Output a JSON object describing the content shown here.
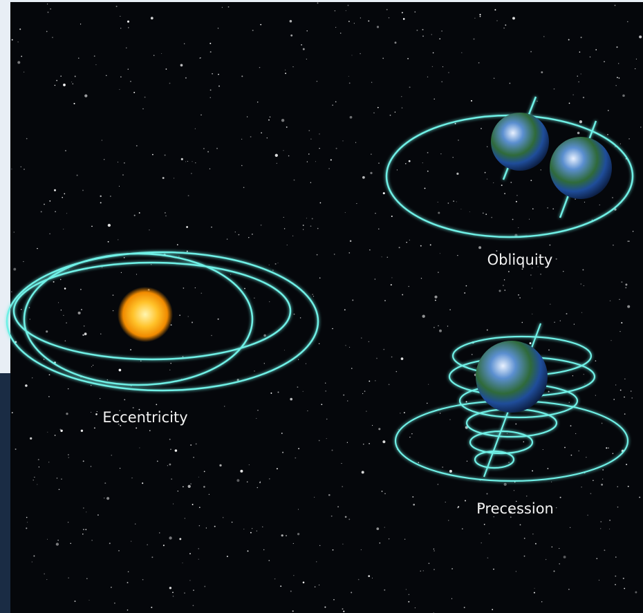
{
  "labels": {
    "eccentricity": "Eccentricity",
    "obliquity": "Obliquity",
    "precession": "Precession"
  }
}
